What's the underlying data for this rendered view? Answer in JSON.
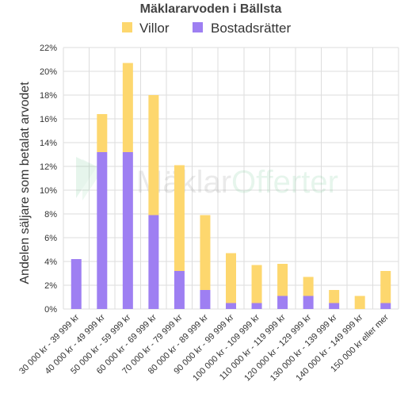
{
  "chart_data": {
    "type": "bar",
    "stacked": true,
    "title": "Mäklararvoden i Bällsta",
    "ylabel": "Andelen säljare som betalat arvodet",
    "xlabel": "",
    "ylim": [
      0,
      22
    ],
    "ytick_labels": [
      "0%",
      "2%",
      "4%",
      "6%",
      "8%",
      "10%",
      "12%",
      "14%",
      "16%",
      "18%",
      "20%",
      "22%"
    ],
    "grid": true,
    "legend_position": "top",
    "categories": [
      "30 000 kr - 39 999 kr",
      "40 000 kr - 49 999 kr",
      "50 000 kr - 59 999 kr",
      "60 000 kr - 69 999 kr",
      "70 000 kr - 79 999 kr",
      "80 000 kr - 89 999 kr",
      "90 000 kr - 99 999 kr",
      "100 000 kr - 109 999 kr",
      "110 000 kr - 119 999 kr",
      "120 000 kr - 129 999 kr",
      "130 000 kr - 139 999 kr",
      "140 000 kr - 149 999 kr",
      "150 000 kr eller mer"
    ],
    "series": [
      {
        "name": "Bostadsrätter",
        "color": "#9e7ff2",
        "values": [
          4.2,
          13.2,
          13.2,
          7.9,
          3.2,
          1.6,
          0.5,
          0.5,
          1.1,
          1.1,
          0.5,
          0,
          0.5
        ]
      },
      {
        "name": "Villor",
        "color": "#fdd76e",
        "values": [
          0,
          3.2,
          7.5,
          10.1,
          8.9,
          6.3,
          4.2,
          3.2,
          2.7,
          1.6,
          1.1,
          1.1,
          2.7
        ]
      }
    ],
    "legend_order": [
      "Villor",
      "Bostadsrätter"
    ]
  },
  "watermark": {
    "text_gray": "Mäklar",
    "text_green": "Offerter"
  }
}
